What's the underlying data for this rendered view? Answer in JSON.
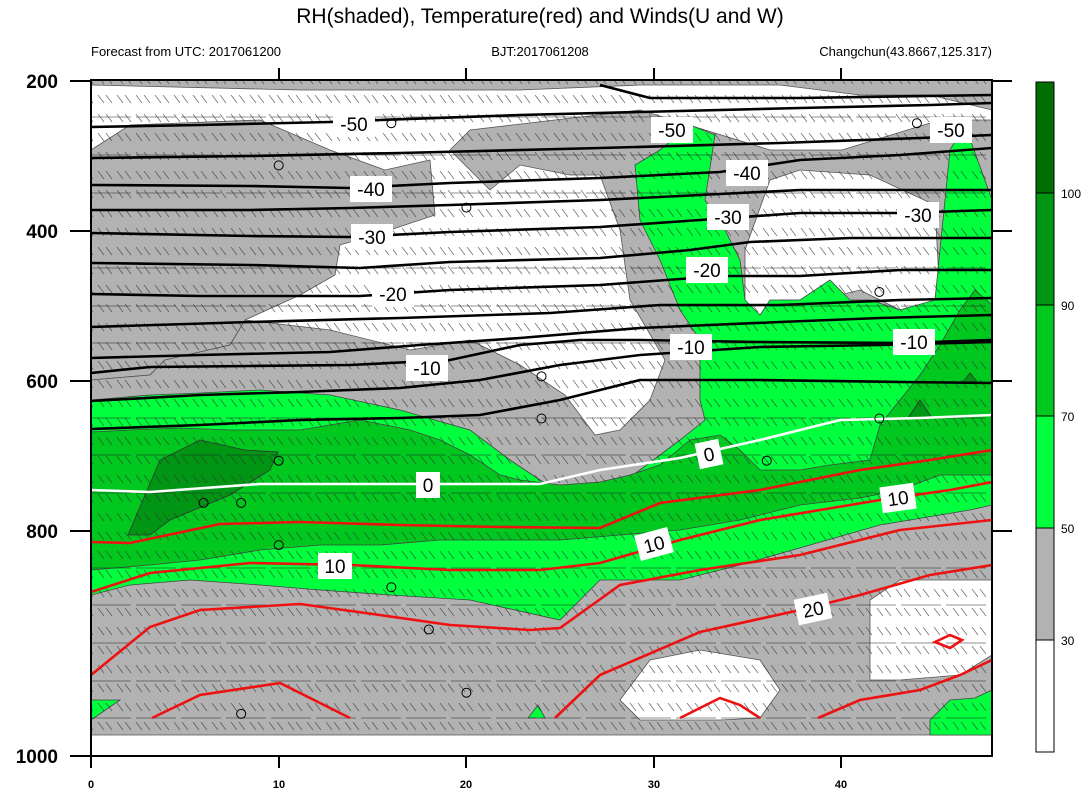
{
  "chart_data": {
    "type": "contour",
    "title": "RH(shaded), Temperature(red) and Winds(U and W)",
    "subtitle_left": "Forecast from UTC: 2017061200",
    "subtitle_center": "BJT:2017061208",
    "subtitle_right": "Changchun(43.8667,125.317)",
    "x_ticks": [
      "0",
      "10",
      "20",
      "30",
      "40"
    ],
    "y_ticks": [
      "200",
      "400",
      "600",
      "800",
      "1000"
    ],
    "xlim": [
      0,
      48
    ],
    "ylim": [
      1000,
      200
    ],
    "colorbar": {
      "labels": [
        "30",
        "50",
        "70",
        "90",
        "100"
      ],
      "colors": [
        "#ffffff",
        "#b2b2b2",
        "#00ff3c",
        "#00c81e",
        "#009614",
        "#006e00"
      ]
    },
    "temperature_contour_labels": {
      "cold": [
        "-50",
        "-50",
        "-50",
        "-40",
        "-40",
        "-30",
        "-30",
        "-30",
        "-20",
        "-20",
        "-10",
        "-10",
        "-10"
      ],
      "zero": [
        "0",
        "0"
      ],
      "warm": [
        "10",
        "10",
        "10",
        "20"
      ]
    },
    "calm_wind_markers": [
      {
        "x": 16,
        "p": 250
      },
      {
        "x": 44,
        "p": 250
      },
      {
        "x": 10,
        "p": 300
      },
      {
        "x": 20,
        "p": 350
      },
      {
        "x": 42,
        "p": 450
      },
      {
        "x": 24,
        "p": 550
      },
      {
        "x": 24,
        "p": 600
      },
      {
        "x": 42,
        "p": 600
      },
      {
        "x": 10,
        "p": 650
      },
      {
        "x": 36,
        "p": 650
      },
      {
        "x": 6,
        "p": 700
      },
      {
        "x": 8,
        "p": 700
      },
      {
        "x": 10,
        "p": 750
      },
      {
        "x": 16,
        "p": 800
      },
      {
        "x": 18,
        "p": 850
      },
      {
        "x": 20,
        "p": 925
      },
      {
        "x": 8,
        "p": 950
      }
    ]
  }
}
